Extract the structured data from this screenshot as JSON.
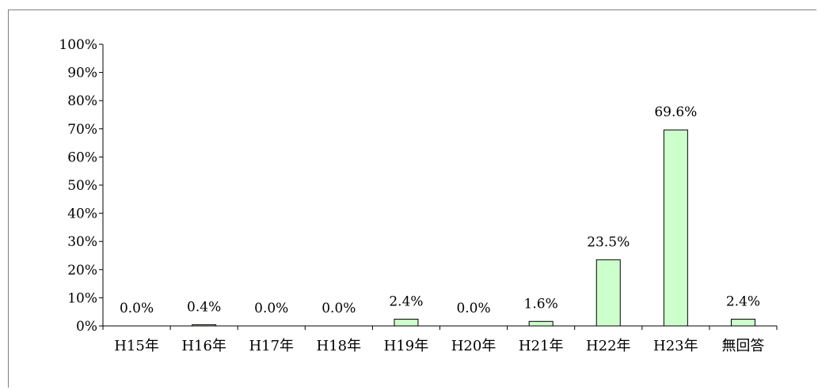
{
  "chart_data": {
    "type": "bar",
    "categories": [
      "H15年",
      "H16年",
      "H17年",
      "H18年",
      "H19年",
      "H20年",
      "H21年",
      "H22年",
      "H23年",
      "無回答"
    ],
    "values": [
      0.0,
      0.4,
      0.0,
      0.0,
      2.4,
      0.0,
      1.6,
      23.5,
      69.6,
      2.4
    ],
    "data_labels": [
      "0.0%",
      "0.4%",
      "0.0%",
      "0.0%",
      "2.4%",
      "0.0%",
      "1.6%",
      "23.5%",
      "69.6%",
      "2.4%"
    ],
    "y_ticks": [
      "0%",
      "10%",
      "20%",
      "30%",
      "40%",
      "50%",
      "60%",
      "70%",
      "80%",
      "90%",
      "100%"
    ],
    "ylim": [
      0,
      100
    ],
    "title": "",
    "xlabel": "",
    "ylabel": "",
    "grid": false,
    "bar_fill": "#ccffcc",
    "bar_stroke": "#000000",
    "axis_color": "#000000"
  }
}
